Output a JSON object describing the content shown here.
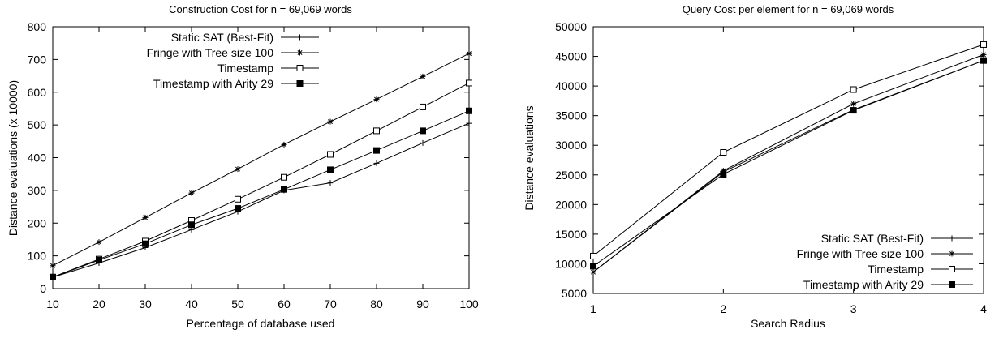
{
  "chart_data": [
    {
      "type": "line",
      "title": "Construction Cost for n = 69,069 words",
      "xlabel": "Percentage of database used",
      "ylabel": "Distance evaluations (x 10000)",
      "x": [
        10,
        20,
        30,
        40,
        50,
        60,
        70,
        80,
        90,
        100
      ],
      "xlim": [
        10,
        100
      ],
      "ylim": [
        0,
        800
      ],
      "xticks": [
        "10",
        "20",
        "30",
        "40",
        "50",
        "60",
        "70",
        "80",
        "90",
        "100"
      ],
      "yticks": [
        "0",
        "100",
        "200",
        "300",
        "400",
        "500",
        "600",
        "700",
        "800"
      ],
      "grid": false,
      "legend_position": "top-left",
      "series": [
        {
          "name": "Static SAT (Best-Fit)",
          "marker": "plus",
          "values": [
            35,
            78,
            125,
            180,
            235,
            300,
            323,
            383,
            445,
            505
          ]
        },
        {
          "name": "Fringe with Tree size 100",
          "marker": "star",
          "values": [
            70,
            142,
            217,
            292,
            365,
            440,
            510,
            578,
            648,
            718
          ]
        },
        {
          "name": "Timestamp",
          "marker": "open-square",
          "values": [
            35,
            90,
            145,
            208,
            273,
            340,
            410,
            482,
            555,
            628
          ]
        },
        {
          "name": "Timestamp with Arity 29",
          "marker": "filled-square",
          "values": [
            35,
            87,
            137,
            195,
            245,
            303,
            363,
            422,
            482,
            543
          ]
        }
      ]
    },
    {
      "type": "line",
      "title": "Query Cost per element for n = 69,069 words",
      "xlabel": "Search Radius",
      "ylabel": "Distance evaluations",
      "x": [
        1,
        2,
        3,
        4
      ],
      "xlim": [
        1,
        4
      ],
      "ylim": [
        5000,
        50000
      ],
      "xticks": [
        "1",
        "2",
        "3",
        "4"
      ],
      "yticks": [
        "5000",
        "10000",
        "15000",
        "20000",
        "25000",
        "30000",
        "35000",
        "40000",
        "45000",
        "50000"
      ],
      "grid": false,
      "legend_position": "bottom-right",
      "series": [
        {
          "name": "Static SAT (Best-Fit)",
          "marker": "plus",
          "values": [
            8600,
            25500,
            36000,
            44300
          ]
        },
        {
          "name": "Fringe with Tree size 100",
          "marker": "star",
          "values": [
            8600,
            25700,
            37000,
            45300
          ]
        },
        {
          "name": "Timestamp",
          "marker": "open-square",
          "values": [
            11300,
            28800,
            39400,
            47000
          ]
        },
        {
          "name": "Timestamp with Arity 29",
          "marker": "filled-square",
          "values": [
            9600,
            25100,
            35900,
            44300
          ]
        }
      ]
    }
  ]
}
